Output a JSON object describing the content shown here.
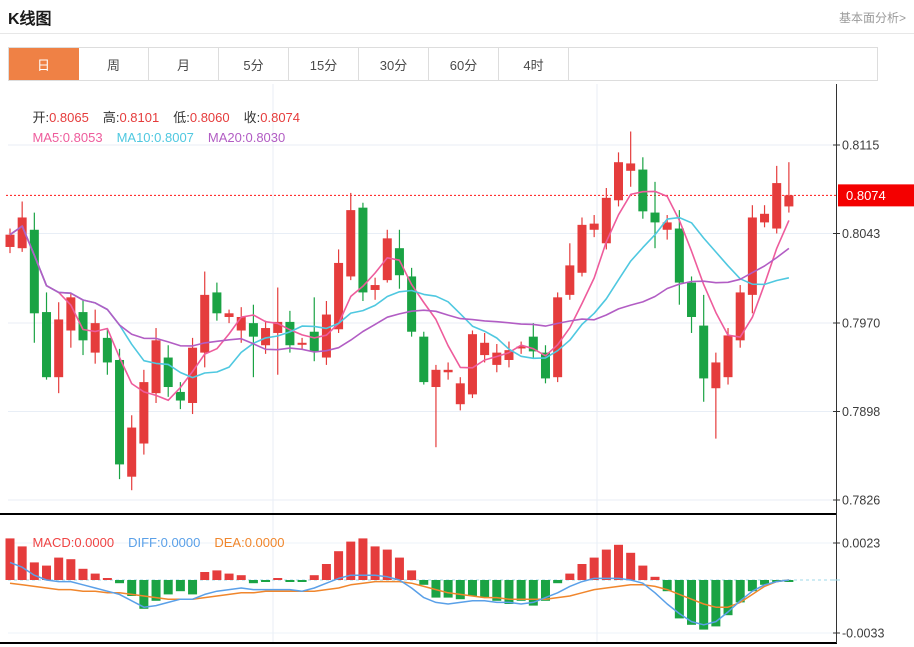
{
  "header": {
    "title": "K线图",
    "link_label": "基本面分析>"
  },
  "tabs": {
    "active": "日",
    "items": [
      {
        "id": "day",
        "label": "日"
      },
      {
        "id": "week",
        "label": "周"
      },
      {
        "id": "month",
        "label": "月"
      },
      {
        "id": "min5",
        "label": "5分"
      },
      {
        "id": "min15",
        "label": "15分"
      },
      {
        "id": "min30",
        "label": "30分"
      },
      {
        "id": "min60",
        "label": "60分"
      },
      {
        "id": "hour4",
        "label": "4时"
      }
    ]
  },
  "legend": {
    "open_label": "开:",
    "open": "0.8065",
    "high_label": "高:",
    "high": "0.8101",
    "low_label": "低:",
    "low": "0.8060",
    "close_label": "收:",
    "close": "0.8074",
    "ma5_label": "MA5:",
    "ma5": "0.8053",
    "ma10_label": "MA10:",
    "ma10": "0.8007",
    "ma20_label": "MA20:",
    "ma20": "0.8030",
    "macd_label": "MACD:",
    "macd": "0.0000",
    "diff_label": "DIFF:",
    "diff": "0.0000",
    "dea_label": "DEA:",
    "dea": "0.0000"
  },
  "colors": {
    "up": "#e53c3c",
    "down": "#1aa344",
    "ma5": "#ee5c9c",
    "ma10": "#4fc8e0",
    "ma20": "#b25dc4",
    "diff": "#5aa0e8",
    "dea": "#f0862c",
    "price_line": "#ff1414",
    "badge_bg": "#f40000",
    "badge_text": "#ffffff",
    "grid": "#e8eef6",
    "axis": "#333333",
    "axis_text": "#3c3c3c",
    "zero_dash": "#9fd8e8",
    "panel_sep": "#000000",
    "tab_accent": "#ef8145"
  },
  "chart_data": {
    "type": "candlestick",
    "title": "K线图",
    "legend_position": "top-left",
    "grid": true,
    "current_price": 0.8074,
    "current_price_label": "0.8074",
    "price_axis": {
      "ticks": [
        0.8115,
        0.8043,
        0.797,
        0.7898,
        0.7826
      ],
      "tick_labels": [
        "0.8115",
        "0.8043",
        "0.7970",
        "0.7898",
        "0.7826"
      ],
      "range": [
        0.7815,
        0.8165
      ]
    },
    "macd_axis": {
      "ticks": [
        0.0023,
        -0.0033
      ],
      "tick_labels": [
        "0.0023",
        "-0.0033"
      ]
    },
    "candles": [
      [
        0.8032,
        0.8047,
        0.8027,
        0.8042
      ],
      [
        0.8031,
        0.8069,
        0.8028,
        0.8056
      ],
      [
        0.8046,
        0.806,
        0.7954,
        0.7978
      ],
      [
        0.7979,
        0.7995,
        0.7924,
        0.7926
      ],
      [
        0.7926,
        0.7987,
        0.7913,
        0.7973
      ],
      [
        0.7964,
        0.7995,
        0.795,
        0.7991
      ],
      [
        0.7979,
        0.7989,
        0.7944,
        0.7956
      ],
      [
        0.7946,
        0.7981,
        0.7937,
        0.797
      ],
      [
        0.7958,
        0.7966,
        0.7928,
        0.7938
      ],
      [
        0.794,
        0.7949,
        0.7843,
        0.7855
      ],
      [
        0.7845,
        0.7895,
        0.7834,
        0.7885
      ],
      [
        0.7872,
        0.7932,
        0.7863,
        0.7922
      ],
      [
        0.7913,
        0.7966,
        0.7905,
        0.7956
      ],
      [
        0.7942,
        0.7952,
        0.791,
        0.7918
      ],
      [
        0.7914,
        0.7922,
        0.79,
        0.7907
      ],
      [
        0.7905,
        0.7958,
        0.7896,
        0.795
      ],
      [
        0.7946,
        0.8012,
        0.7934,
        0.7993
      ],
      [
        0.7995,
        0.8003,
        0.7972,
        0.7978
      ],
      [
        0.7975,
        0.7981,
        0.797,
        0.7978
      ],
      [
        0.7964,
        0.7983,
        0.7954,
        0.7975
      ],
      [
        0.797,
        0.7985,
        0.7926,
        0.7959
      ],
      [
        0.7952,
        0.7972,
        0.7945,
        0.7966
      ],
      [
        0.7962,
        0.7999,
        0.7928,
        0.7971
      ],
      [
        0.7971,
        0.798,
        0.7946,
        0.7952
      ],
      [
        0.7953,
        0.7958,
        0.7949,
        0.7954
      ],
      [
        0.7963,
        0.7991,
        0.7939,
        0.7947
      ],
      [
        0.7942,
        0.7988,
        0.7936,
        0.7977
      ],
      [
        0.7965,
        0.803,
        0.7962,
        0.8019
      ],
      [
        0.8008,
        0.8076,
        0.8005,
        0.8062
      ],
      [
        0.8064,
        0.8068,
        0.7988,
        0.7995
      ],
      [
        0.7997,
        0.8007,
        0.7989,
        0.8001
      ],
      [
        0.8005,
        0.8046,
        0.8003,
        0.8039
      ],
      [
        0.8031,
        0.8046,
        0.7998,
        0.8009
      ],
      [
        0.8008,
        0.8015,
        0.7959,
        0.7963
      ],
      [
        0.7959,
        0.7963,
        0.792,
        0.7922
      ],
      [
        0.7918,
        0.7936,
        0.7869,
        0.7932
      ],
      [
        0.793,
        0.7938,
        0.7924,
        0.7932
      ],
      [
        0.7904,
        0.7926,
        0.7899,
        0.7921
      ],
      [
        0.7912,
        0.7964,
        0.7909,
        0.7961
      ],
      [
        0.7944,
        0.7962,
        0.7938,
        0.7954
      ],
      [
        0.7936,
        0.7953,
        0.793,
        0.7946
      ],
      [
        0.794,
        0.7955,
        0.7934,
        0.7948
      ],
      [
        0.795,
        0.7955,
        0.7945,
        0.7951
      ],
      [
        0.7959,
        0.797,
        0.7941,
        0.7947
      ],
      [
        0.7946,
        0.7952,
        0.7921,
        0.7925
      ],
      [
        0.7926,
        0.7995,
        0.7922,
        0.7991
      ],
      [
        0.7993,
        0.8035,
        0.7989,
        0.8017
      ],
      [
        0.8011,
        0.8056,
        0.8008,
        0.805
      ],
      [
        0.8046,
        0.8058,
        0.804,
        0.8051
      ],
      [
        0.8035,
        0.808,
        0.803,
        0.8072
      ],
      [
        0.807,
        0.8109,
        0.8065,
        0.8101
      ],
      [
        0.8094,
        0.8126,
        0.8081,
        0.81
      ],
      [
        0.8095,
        0.8105,
        0.8055,
        0.8061
      ],
      [
        0.806,
        0.8085,
        0.8031,
        0.8052
      ],
      [
        0.8046,
        0.8058,
        0.8038,
        0.8052
      ],
      [
        0.8047,
        0.8062,
        0.7985,
        0.8003
      ],
      [
        0.8003,
        0.8008,
        0.7962,
        0.7975
      ],
      [
        0.7968,
        0.7993,
        0.7906,
        0.7925
      ],
      [
        0.7917,
        0.7946,
        0.7876,
        0.7938
      ],
      [
        0.7926,
        0.7966,
        0.792,
        0.796
      ],
      [
        0.7956,
        0.8001,
        0.795,
        0.7995
      ],
      [
        0.7993,
        0.8066,
        0.7978,
        0.8056
      ],
      [
        0.8052,
        0.8066,
        0.8048,
        0.8059
      ],
      [
        0.8047,
        0.8098,
        0.8043,
        0.8084
      ],
      [
        0.8065,
        0.8101,
        0.806,
        0.8074
      ]
    ],
    "ma_periods": [
      5,
      10,
      20
    ],
    "macd": {
      "hist": [
        0.0026,
        0.0021,
        0.0011,
        0.0009,
        0.0014,
        0.0013,
        0.0007,
        0.0004,
        0.0001,
        -0.0002,
        -0.001,
        -0.0018,
        -0.0013,
        -0.0009,
        -0.0007,
        -0.0009,
        0.0005,
        0.0006,
        0.0004,
        0.0003,
        -0.0002,
        -0.0001,
        0.0001,
        -0.0001,
        -0.0001,
        0.0003,
        0.001,
        0.0018,
        0.0024,
        0.0026,
        0.0021,
        0.0019,
        0.0014,
        0.0006,
        -0.0003,
        -0.0011,
        -0.0011,
        -0.0012,
        -0.001,
        -0.0011,
        -0.0013,
        -0.0015,
        -0.0013,
        -0.0016,
        -0.0013,
        -0.0002,
        0.0004,
        0.001,
        0.0014,
        0.0019,
        0.0022,
        0.0017,
        0.0009,
        0.0002,
        -0.0007,
        -0.0024,
        -0.0028,
        -0.0031,
        -0.0029,
        -0.0022,
        -0.0014,
        -0.0007,
        -0.0003,
        -0.0001,
        -0.0001
      ],
      "diff": [
        0.0011,
        0.0008,
        0.0003,
        0.0,
        -0.0001,
        -0.0001,
        -0.0003,
        -0.0005,
        -0.0007,
        -0.0009,
        -0.0013,
        -0.0017,
        -0.0016,
        -0.0014,
        -0.0012,
        -0.0012,
        -0.0009,
        -0.0007,
        -0.0006,
        -0.0005,
        -0.0006,
        -0.0006,
        -0.0006,
        -0.0006,
        -0.0007,
        -0.0005,
        -0.0002,
        0.0001,
        0.0003,
        0.0003,
        0.0003,
        0.0002,
        0.0,
        -0.0005,
        -0.0011,
        -0.0014,
        -0.0015,
        -0.0014,
        -0.0013,
        -0.0013,
        -0.0014,
        -0.0014,
        -0.0015,
        -0.0014,
        -0.0011,
        -0.0008,
        -0.0004,
        -0.0001,
        0.0001,
        0.0001,
        0.0001,
        0.0,
        -0.0002,
        -0.0008,
        -0.0015,
        -0.0021,
        -0.0026,
        -0.0028,
        -0.0026,
        -0.002,
        -0.0013,
        -0.0007,
        -0.0003,
        -0.0001,
        0.0
      ],
      "dea": [
        -0.0002,
        -0.0003,
        -0.0004,
        -0.0005,
        -0.0006,
        -0.0006,
        -0.0007,
        -0.0007,
        -0.0008,
        -0.0008,
        -0.0009,
        -0.001,
        -0.0011,
        -0.0012,
        -0.0012,
        -0.0012,
        -0.0011,
        -0.001,
        -0.0009,
        -0.0008,
        -0.0008,
        -0.0007,
        -0.0007,
        -0.0007,
        -0.0007,
        -0.0007,
        -0.0006,
        -0.0005,
        -0.0003,
        -0.0002,
        -0.0001,
        -0.0001,
        -0.0001,
        -0.0002,
        -0.0004,
        -0.0006,
        -0.0008,
        -0.0009,
        -0.001,
        -0.0011,
        -0.0011,
        -0.0012,
        -0.0012,
        -0.0012,
        -0.0012,
        -0.0011,
        -0.001,
        -0.0008,
        -0.0006,
        -0.0005,
        -0.0004,
        -0.0003,
        -0.0003,
        -0.0004,
        -0.0006,
        -0.0009,
        -0.0012,
        -0.0015,
        -0.0017,
        -0.0017,
        -0.0014,
        -0.0009,
        -0.0004,
        -0.0001,
        0.0
      ]
    }
  }
}
